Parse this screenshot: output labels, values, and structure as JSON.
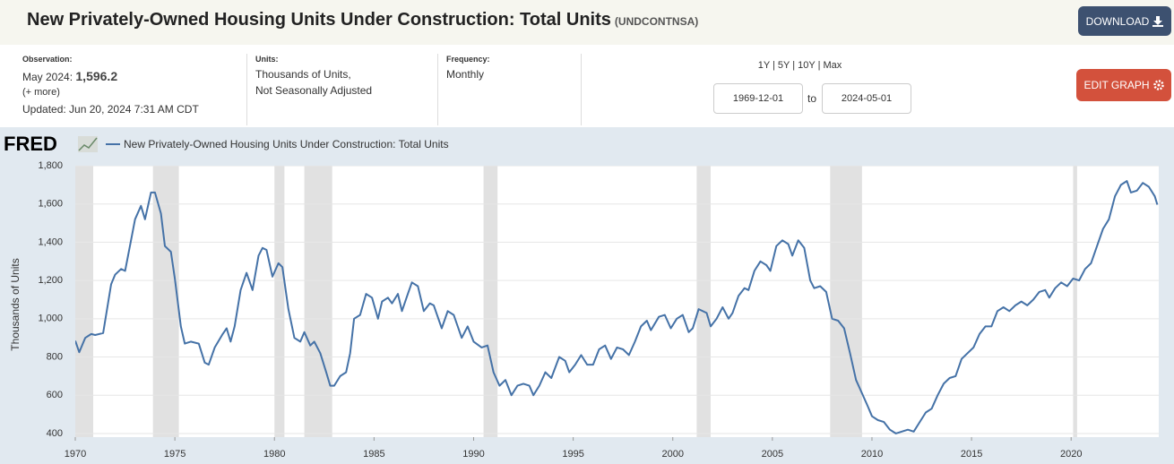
{
  "header": {
    "title": "New Privately-Owned Housing Units Under Construction: Total Units",
    "series_id": "(UNDCONTNSA)",
    "download": "DOWNLOAD"
  },
  "info": {
    "observation_label": "Observation:",
    "observation_date": "May 2024:",
    "observation_value": "1,596.2",
    "more": "(+ more)",
    "updated": "Updated: Jun 20, 2024 7:31 AM CDT",
    "units_label": "Units:",
    "units": [
      "Thousands of Units,",
      "Not Seasonally Adjusted"
    ],
    "frequency_label": "Frequency:",
    "frequency": "Monthly"
  },
  "range": {
    "links": "1Y | 5Y | 10Y | Max",
    "start": "1969-12-01",
    "to": "to",
    "end": "2024-05-01",
    "edit": "EDIT GRAPH"
  },
  "chart_data": {
    "type": "line",
    "logo": "FRED",
    "y_label": "Thousands of Units",
    "x": [
      1970.0,
      1970.2,
      1970.5,
      1970.8,
      1971.0,
      1971.4,
      1971.8,
      1972.0,
      1972.3,
      1972.5,
      1972.8,
      1973.0,
      1973.3,
      1973.5,
      1973.8,
      1974.0,
      1974.3,
      1974.5,
      1974.8,
      1975.0,
      1975.3,
      1975.5,
      1975.8,
      1976.2,
      1976.5,
      1976.7,
      1977.0,
      1977.4,
      1977.6,
      1977.8,
      1978.0,
      1978.3,
      1978.6,
      1978.9,
      1979.2,
      1979.4,
      1979.6,
      1979.9,
      1980.2,
      1980.4,
      1980.7,
      1981.0,
      1981.3,
      1981.5,
      1981.8,
      1982.0,
      1982.3,
      1982.6,
      1982.8,
      1983.0,
      1983.3,
      1983.6,
      1983.8,
      1984.0,
      1984.3,
      1984.6,
      1984.9,
      1985.2,
      1985.4,
      1985.7,
      1985.9,
      1986.2,
      1986.4,
      1986.7,
      1986.9,
      1987.2,
      1987.5,
      1987.8,
      1988.0,
      1988.4,
      1988.7,
      1989.0,
      1989.4,
      1989.7,
      1990.0,
      1990.4,
      1990.7,
      1991.0,
      1991.3,
      1991.6,
      1991.9,
      1992.2,
      1992.5,
      1992.8,
      1993.0,
      1993.3,
      1993.6,
      1993.9,
      1994.3,
      1994.6,
      1994.8,
      1995.1,
      1995.4,
      1995.7,
      1996.0,
      1996.3,
      1996.6,
      1996.9,
      1997.2,
      1997.5,
      1997.8,
      1998.1,
      1998.4,
      1998.7,
      1998.9,
      1999.3,
      1999.6,
      1999.9,
      2000.2,
      2000.5,
      2000.8,
      2001.0,
      2001.3,
      2001.7,
      2001.9,
      2002.2,
      2002.5,
      2002.8,
      2003.0,
      2003.3,
      2003.6,
      2003.8,
      2004.1,
      2004.4,
      2004.7,
      2004.9,
      2005.2,
      2005.5,
      2005.8,
      2006.0,
      2006.3,
      2006.6,
      2006.9,
      2007.1,
      2007.4,
      2007.7,
      2008.0,
      2008.3,
      2008.6,
      2008.9,
      2009.2,
      2009.5,
      2009.8,
      2010.0,
      2010.3,
      2010.6,
      2010.9,
      2011.2,
      2011.5,
      2011.8,
      2012.1,
      2012.4,
      2012.7,
      2013.0,
      2013.3,
      2013.6,
      2013.9,
      2014.2,
      2014.5,
      2014.8,
      2015.1,
      2015.4,
      2015.7,
      2016.0,
      2016.3,
      2016.6,
      2016.9,
      2017.2,
      2017.5,
      2017.8,
      2018.1,
      2018.4,
      2018.7,
      2018.9,
      2019.2,
      2019.5,
      2019.8,
      2020.1,
      2020.4,
      2020.7,
      2021.0,
      2021.3,
      2021.6,
      2021.9,
      2022.2,
      2022.5,
      2022.8,
      2023.0,
      2023.3,
      2023.6,
      2023.9,
      2024.2,
      2024.33
    ],
    "series": [
      {
        "name": "New Privately-Owned Housing Units Under Construction: Total Units",
        "color": "#4572a7",
        "values": [
          885,
          825,
          900,
          920,
          915,
          925,
          1180,
          1230,
          1260,
          1250,
          1410,
          1520,
          1590,
          1520,
          1660,
          1660,
          1550,
          1380,
          1350,
          1210,
          960,
          870,
          880,
          870,
          770,
          760,
          850,
          920,
          950,
          880,
          960,
          1150,
          1240,
          1150,
          1330,
          1370,
          1360,
          1220,
          1290,
          1270,
          1050,
          900,
          880,
          930,
          860,
          880,
          820,
          720,
          650,
          650,
          700,
          720,
          820,
          1000,
          1020,
          1130,
          1110,
          1000,
          1090,
          1110,
          1080,
          1130,
          1040,
          1130,
          1190,
          1170,
          1040,
          1080,
          1070,
          950,
          1040,
          1020,
          900,
          960,
          880,
          850,
          860,
          720,
          650,
          680,
          600,
          650,
          660,
          650,
          600,
          650,
          720,
          690,
          800,
          780,
          720,
          760,
          810,
          760,
          760,
          840,
          860,
          790,
          850,
          840,
          810,
          880,
          960,
          990,
          940,
          1010,
          1020,
          950,
          1000,
          1020,
          930,
          950,
          1050,
          1030,
          960,
          1000,
          1060,
          1000,
          1030,
          1120,
          1160,
          1150,
          1250,
          1300,
          1280,
          1250,
          1380,
          1410,
          1390,
          1330,
          1410,
          1370,
          1200,
          1160,
          1170,
          1140,
          1000,
          990,
          950,
          820,
          680,
          610,
          540,
          490,
          470,
          460,
          420,
          400,
          410,
          420,
          410,
          460,
          510,
          530,
          600,
          660,
          690,
          700,
          790,
          820,
          850,
          920,
          960,
          960,
          1040,
          1060,
          1040,
          1070,
          1090,
          1070,
          1100,
          1140,
          1150,
          1110,
          1160,
          1190,
          1170,
          1210,
          1200,
          1260,
          1290,
          1380,
          1470,
          1520,
          1640,
          1700,
          1720,
          1660,
          1670,
          1710,
          1690,
          1640,
          1596.2
        ]
      }
    ],
    "recessions": [
      [
        1969.92,
        1970.9
      ],
      [
        1973.9,
        1975.2
      ],
      [
        1980.0,
        1980.5
      ],
      [
        1981.5,
        1982.9
      ],
      [
        1990.5,
        1991.2
      ],
      [
        2001.2,
        2001.9
      ],
      [
        2007.9,
        2009.5
      ],
      [
        2020.1,
        2020.3
      ]
    ],
    "recession_color": "#e1e1e1",
    "xlim": [
      1970,
      2024.4
    ],
    "ylim": [
      381,
      1800
    ],
    "xticks": [
      1970,
      1975,
      1980,
      1985,
      1990,
      1995,
      2000,
      2005,
      2010,
      2015,
      2020
    ],
    "yticks": [
      400,
      600,
      800,
      {
        "value": 1000,
        "label": "1,000"
      },
      {
        "value": 1200,
        "label": "1,200"
      },
      {
        "value": 1400,
        "label": "1,400"
      },
      {
        "value": 1600,
        "label": "1,600"
      },
      {
        "value": 1800,
        "label": "1,800"
      }
    ],
    "grid": true
  }
}
